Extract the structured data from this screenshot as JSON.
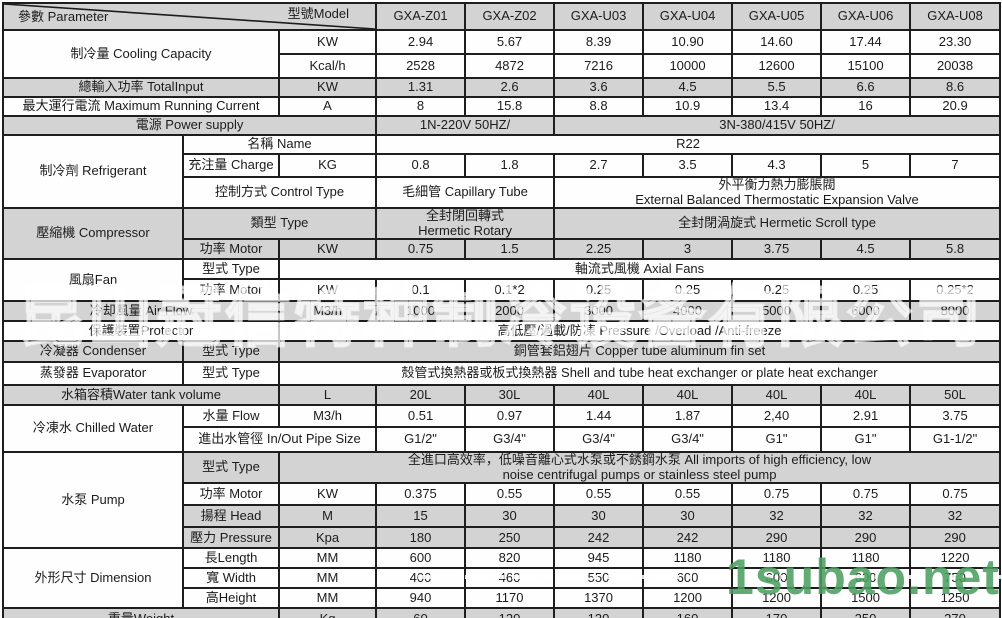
{
  "header": {
    "param_label": "參數 Parameter",
    "model_label": "型號Model",
    "models": [
      "GXA-Z01",
      "GXA-Z02",
      "GXA-U03",
      "GXA-U04",
      "GXA-U05",
      "GXA-U06",
      "GXA-U08"
    ]
  },
  "rows": [
    [
      {
        "diag": true,
        "cs": 3,
        "sh": "g",
        "n": "param-model-header"
      }
    ],
    [
      {
        "t": "制冷量  Cooling Capacity",
        "cs": 2,
        "rs": 2,
        "sh": "w",
        "n": "row-label-cooling-capacity"
      },
      {
        "t": "KW",
        "sh": "w",
        "n": "unit-label"
      },
      {
        "t": "2.94",
        "sh": "w"
      },
      {
        "t": "5.67",
        "sh": "w"
      },
      {
        "t": "8.39",
        "sh": "w"
      },
      {
        "t": "10.90",
        "sh": "w"
      },
      {
        "t": "14.60",
        "sh": "w"
      },
      {
        "t": "17.44",
        "sh": "w"
      },
      {
        "t": "23.30",
        "sh": "w"
      }
    ],
    [
      {
        "t": "Kcal/h",
        "sh": "w",
        "n": "unit-label"
      },
      {
        "t": "2528",
        "sh": "w"
      },
      {
        "t": "4872",
        "sh": "w"
      },
      {
        "t": "7216",
        "sh": "w"
      },
      {
        "t": "10000",
        "sh": "w"
      },
      {
        "t": "12600",
        "sh": "w"
      },
      {
        "t": "15100",
        "sh": "w"
      },
      {
        "t": "20038",
        "sh": "w"
      }
    ],
    [
      {
        "t": "總輸入功率 TotalInput",
        "cs": 2,
        "sh": "g",
        "n": "row-label-total-input"
      },
      {
        "t": "KW",
        "sh": "g",
        "n": "unit-label"
      },
      {
        "t": "1.31",
        "sh": "g"
      },
      {
        "t": "2.6",
        "sh": "g"
      },
      {
        "t": "3.6",
        "sh": "g"
      },
      {
        "t": "4.5",
        "sh": "g"
      },
      {
        "t": "5.5",
        "sh": "g"
      },
      {
        "t": "6.6",
        "sh": "g"
      },
      {
        "t": "8.6",
        "sh": "g"
      }
    ],
    [
      {
        "t": "最大運行電流  Maximum Running Current",
        "cs": 2,
        "sh": "w",
        "n": "row-label-max-current"
      },
      {
        "t": "A",
        "sh": "w",
        "n": "unit-label"
      },
      {
        "t": "8",
        "sh": "w"
      },
      {
        "t": "15.8",
        "sh": "w"
      },
      {
        "t": "8.8",
        "sh": "w"
      },
      {
        "t": "10.9",
        "sh": "w"
      },
      {
        "t": "13.4",
        "sh": "w"
      },
      {
        "t": "16",
        "sh": "w"
      },
      {
        "t": "20.9",
        "sh": "w"
      }
    ],
    [
      {
        "t": "電源  Power supply",
        "cs": 3,
        "sh": "g",
        "n": "row-label-power-supply"
      },
      {
        "t": "1N-220V 50HZ/",
        "cs": 2,
        "sh": "g",
        "al": "l"
      },
      {
        "t": "3N-380/415V  50HZ/",
        "cs": 5,
        "sh": "g"
      }
    ],
    [
      {
        "t": "制冷劑  Refrigerant",
        "rs": 3,
        "sh": "w",
        "n": "row-label-refrigerant"
      },
      {
        "t": "名稱 Name",
        "cs": 2,
        "sh": "w",
        "n": "sub-label"
      },
      {
        "t": "R22",
        "cs": 7,
        "sh": "w"
      }
    ],
    [
      {
        "t": "充注量 Charge",
        "sh": "w",
        "n": "sub-label"
      },
      {
        "t": "KG",
        "sh": "w",
        "n": "unit-label"
      },
      {
        "t": "0.8",
        "sh": "w"
      },
      {
        "t": "1.8",
        "sh": "w"
      },
      {
        "t": "2.7",
        "sh": "w"
      },
      {
        "t": "3.5",
        "sh": "w"
      },
      {
        "t": "4.3",
        "sh": "w"
      },
      {
        "t": "5",
        "sh": "w"
      },
      {
        "t": "7",
        "sh": "w"
      }
    ],
    [
      {
        "t": "控制方式 Control   Type",
        "cs": 2,
        "sh": "w",
        "n": "sub-label"
      },
      {
        "t": "毛細管  Capillary Tube",
        "cs": 2,
        "sh": "w"
      },
      {
        "t": "外平衡力熱力膨脹閥\nExternal Balanced Thermostatic Expansion Valve",
        "cs": 5,
        "sh": "w",
        "sm": true
      }
    ],
    [
      {
        "t": "壓縮機 Compressor",
        "rs": 2,
        "sh": "g",
        "n": "row-label-compressor"
      },
      {
        "t": "類型  Type",
        "cs": 2,
        "sh": "g",
        "n": "sub-label"
      },
      {
        "t": "全封閉回轉式\nHermetic Rotary",
        "cs": 2,
        "sh": "g",
        "sm": true
      },
      {
        "t": "全封閉渦旋式  Hermetic Scroll type",
        "cs": 5,
        "sh": "g"
      }
    ],
    [
      {
        "t": "功率 Motor",
        "sh": "g",
        "n": "sub-label"
      },
      {
        "t": "KW",
        "sh": "g",
        "n": "unit-label"
      },
      {
        "t": "0.75",
        "sh": "g"
      },
      {
        "t": "1.5",
        "sh": "g"
      },
      {
        "t": "2.25",
        "sh": "g"
      },
      {
        "t": "3",
        "sh": "g"
      },
      {
        "t": "3.75",
        "sh": "g"
      },
      {
        "t": "4.5",
        "sh": "g"
      },
      {
        "t": "5.8",
        "sh": "g"
      }
    ],
    [
      {
        "t": "風扇Fan",
        "rs": 2,
        "sh": "w",
        "n": "row-label-fan"
      },
      {
        "t": "型式 Type",
        "sh": "w",
        "n": "sub-label"
      },
      {
        "t": "軸流式風機 Axial Fans",
        "cs": 8,
        "sh": "w"
      }
    ],
    [
      {
        "t": "功率 Motor",
        "sh": "w",
        "n": "sub-label"
      },
      {
        "t": "KW",
        "sh": "w",
        "n": "unit-label"
      },
      {
        "t": "0.1",
        "sh": "w"
      },
      {
        "t": "0.1*2",
        "sh": "w"
      },
      {
        "t": "0.25",
        "sh": "w"
      },
      {
        "t": "0.25",
        "sh": "w"
      },
      {
        "t": "0.25",
        "sh": "w"
      },
      {
        "t": "0.25",
        "sh": "w"
      },
      {
        "t": "0.25*2",
        "sh": "w"
      }
    ],
    [
      {
        "t": "冷却風量 Air Flow",
        "cs": 2,
        "sh": "g",
        "n": "row-label-air-flow"
      },
      {
        "t": "M3/h",
        "sh": "g",
        "n": "unit-label"
      },
      {
        "t": "1000",
        "sh": "g"
      },
      {
        "t": "2000",
        "sh": "g"
      },
      {
        "t": "3000",
        "sh": "g"
      },
      {
        "t": "4000",
        "sh": "g"
      },
      {
        "t": "5000",
        "sh": "g"
      },
      {
        "t": "6000",
        "sh": "g"
      },
      {
        "t": "8000",
        "sh": "g"
      }
    ],
    [
      {
        "t": "保護裝置Protector",
        "cs": 2,
        "sh": "w",
        "n": "row-label-protector"
      },
      {
        "t": "高低壓/過載/防凍 Pressure /Overload /Anti-freeze",
        "cs": 8,
        "sh": "w"
      }
    ],
    [
      {
        "t": "冷凝器 Condenser",
        "sh": "g",
        "n": "row-label-condenser"
      },
      {
        "t": "型式 Type",
        "sh": "g",
        "n": "sub-label"
      },
      {
        "t": "銅管套鋁翅片 Copper tube aluminum fin set",
        "cs": 8,
        "sh": "g"
      }
    ],
    [
      {
        "t": "蒸發器 Evaporator",
        "sh": "w",
        "n": "row-label-evaporator"
      },
      {
        "t": "型式 Type",
        "sh": "w",
        "n": "sub-label"
      },
      {
        "t": "殼管式換熱器或板式換熱器 Shell and tube heat exchanger or plate heat exchanger",
        "cs": 8,
        "sh": "w",
        "al": "l"
      }
    ],
    [
      {
        "t": "水箱容積Water tank volume",
        "cs": 2,
        "sh": "g",
        "n": "row-label-water-tank"
      },
      {
        "t": "L",
        "sh": "g",
        "n": "unit-label"
      },
      {
        "t": "20L",
        "sh": "g"
      },
      {
        "t": "30L",
        "sh": "g"
      },
      {
        "t": "40L",
        "sh": "g"
      },
      {
        "t": "40L",
        "sh": "g"
      },
      {
        "t": "40L",
        "sh": "g"
      },
      {
        "t": "40L",
        "sh": "g"
      },
      {
        "t": "50L",
        "sh": "g"
      }
    ],
    [
      {
        "t": "冷凍水 Chilled  Water",
        "rs": 2,
        "sh": "w",
        "n": "row-label-chilled-water"
      },
      {
        "t": "水量 Flow",
        "sh": "w",
        "n": "sub-label"
      },
      {
        "t": "M3/h",
        "sh": "w",
        "n": "unit-label"
      },
      {
        "t": "0.51",
        "sh": "w"
      },
      {
        "t": "0.97",
        "sh": "w"
      },
      {
        "t": "1.44",
        "sh": "w"
      },
      {
        "t": "1.87",
        "sh": "w"
      },
      {
        "t": "2,40",
        "sh": "w"
      },
      {
        "t": "2.91",
        "sh": "w"
      },
      {
        "t": "3.75",
        "sh": "w"
      }
    ],
    [
      {
        "t": "進出水管徑  In/Out Pipe Size",
        "cs": 2,
        "sh": "w",
        "n": "sub-label"
      },
      {
        "t": "G1/2\"",
        "sh": "w"
      },
      {
        "t": "G3/4\"",
        "sh": "w"
      },
      {
        "t": "G3/4\"",
        "sh": "w"
      },
      {
        "t": "G3/4\"",
        "sh": "w"
      },
      {
        "t": "G1\"",
        "sh": "w"
      },
      {
        "t": "G1\"",
        "sh": "w"
      },
      {
        "t": "G1-1/2\"",
        "sh": "w"
      }
    ],
    [
      {
        "t": "水泵   Pump",
        "rs": 4,
        "sh": "w",
        "n": "row-label-pump"
      },
      {
        "t": "型式 Type",
        "sh": "g",
        "n": "sub-label"
      },
      {
        "t": "全進口高效率，低噪音離心式水泵或不銹鋼水泵 All imports of high efficiency, low\nnoise centrifugal pumps or stainless steel pump",
        "cs": 8,
        "sh": "g",
        "sm": true,
        "pr": true
      }
    ],
    [
      {
        "t": "功率 Motor",
        "sh": "w",
        "n": "sub-label"
      },
      {
        "t": "KW",
        "sh": "w",
        "n": "unit-label"
      },
      {
        "t": "0.375",
        "sh": "w"
      },
      {
        "t": "0.55",
        "sh": "w"
      },
      {
        "t": "0.55",
        "sh": "w"
      },
      {
        "t": "0.55",
        "sh": "w"
      },
      {
        "t": "0.75",
        "sh": "w"
      },
      {
        "t": "0.75",
        "sh": "w"
      },
      {
        "t": "0.75",
        "sh": "w"
      }
    ],
    [
      {
        "t": "揚程 Head",
        "sh": "g",
        "n": "sub-label"
      },
      {
        "t": "M",
        "sh": "g",
        "n": "unit-label"
      },
      {
        "t": "15",
        "sh": "g"
      },
      {
        "t": "30",
        "sh": "g"
      },
      {
        "t": "30",
        "sh": "g"
      },
      {
        "t": "30",
        "sh": "g"
      },
      {
        "t": "32",
        "sh": "g"
      },
      {
        "t": "32",
        "sh": "g"
      },
      {
        "t": "32",
        "sh": "g"
      }
    ],
    [
      {
        "t": "壓力 Pressure",
        "sh": "g",
        "n": "sub-label"
      },
      {
        "t": "Kpa",
        "sh": "g",
        "n": "unit-label"
      },
      {
        "t": "180",
        "sh": "g"
      },
      {
        "t": "250",
        "sh": "g"
      },
      {
        "t": "242",
        "sh": "g"
      },
      {
        "t": "242",
        "sh": "g"
      },
      {
        "t": "290",
        "sh": "g"
      },
      {
        "t": "290",
        "sh": "g"
      },
      {
        "t": "290",
        "sh": "g"
      }
    ],
    [
      {
        "t": "外形尺寸 Dimension",
        "rs": 3,
        "sh": "w",
        "n": "row-label-dimension"
      },
      {
        "t": "長Length",
        "sh": "w",
        "n": "sub-label"
      },
      {
        "t": "MM",
        "sh": "w",
        "n": "unit-label"
      },
      {
        "t": "600",
        "sh": "w"
      },
      {
        "t": "820",
        "sh": "w"
      },
      {
        "t": "945",
        "sh": "w"
      },
      {
        "t": "1180",
        "sh": "w"
      },
      {
        "t": "1180",
        "sh": "w"
      },
      {
        "t": "1180",
        "sh": "w"
      },
      {
        "t": "1220",
        "sh": "w"
      }
    ],
    [
      {
        "t": "寬 Width",
        "sh": "w",
        "n": "sub-label"
      },
      {
        "t": "MM",
        "sh": "w",
        "n": "unit-label"
      },
      {
        "t": "400",
        "sh": "w"
      },
      {
        "t": "460",
        "sh": "w"
      },
      {
        "t": "550",
        "sh": "w"
      },
      {
        "t": "600",
        "sh": "w"
      },
      {
        "t": "600",
        "sh": "w"
      },
      {
        "t": "600",
        "sh": "w"
      },
      {
        "t": "750",
        "sh": "w"
      }
    ],
    [
      {
        "t": "高Height",
        "sh": "w",
        "n": "sub-label"
      },
      {
        "t": "MM",
        "sh": "w",
        "n": "unit-label"
      },
      {
        "t": "940",
        "sh": "w"
      },
      {
        "t": "1170",
        "sh": "w"
      },
      {
        "t": "1370",
        "sh": "w"
      },
      {
        "t": "1200",
        "sh": "w"
      },
      {
        "t": "1200",
        "sh": "w"
      },
      {
        "t": "1500",
        "sh": "w"
      },
      {
        "t": "1250",
        "sh": "w"
      }
    ],
    [
      {
        "t": "重量Weight",
        "cs": 2,
        "sh": "g",
        "n": "row-label-weight"
      },
      {
        "t": "Kg",
        "sh": "g",
        "n": "unit-label"
      },
      {
        "t": "60",
        "sh": "g"
      },
      {
        "t": "120",
        "sh": "g"
      },
      {
        "t": "130",
        "sh": "g"
      },
      {
        "t": "160",
        "sh": "g"
      },
      {
        "t": "170",
        "sh": "g"
      },
      {
        "t": "250",
        "sh": "g"
      },
      {
        "t": "270",
        "sh": "g"
      }
    ]
  ],
  "watermark": {
    "company": "昆山冠信特种制冷设备有限公司",
    "site": "1subao.net",
    "site_color": "#4d9f60"
  }
}
